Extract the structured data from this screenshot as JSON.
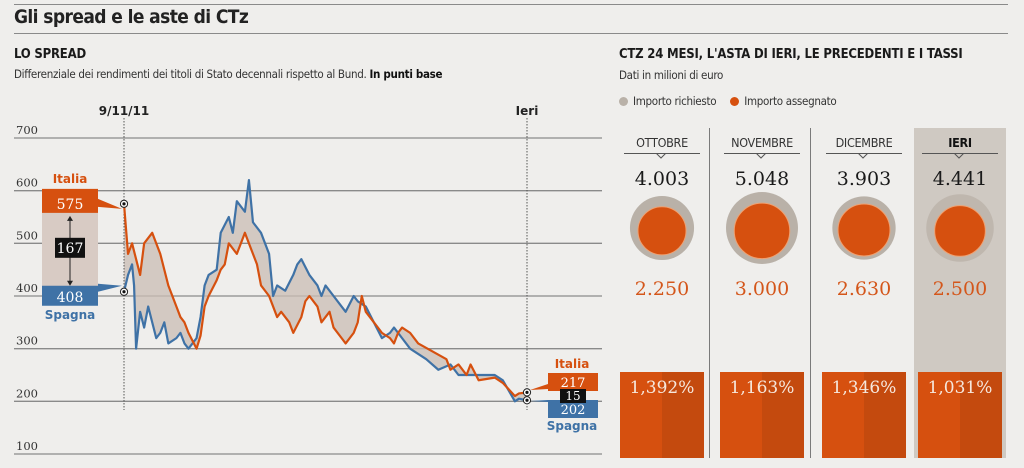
{
  "header": {
    "title": "Gli spread e le aste di CTz"
  },
  "spread": {
    "title": "LO SPREAD",
    "subtitle": "Differenziale dei rendimenti dei titoli di Stato decennali rispetto al Bund.",
    "subtitle_bold": "In punti base"
  },
  "auctions": {
    "title": "CTZ 24 MESI,  L'ASTA DI IERI, LE PRECEDENTI E I TASSI",
    "subtitle": "Dati in milioni di euro",
    "legend": [
      {
        "label": "Importo richiesto",
        "color": "#b9b1a8"
      },
      {
        "label": "Importo assegnato",
        "color": "#d6500f"
      }
    ],
    "columns": [
      {
        "month": "OTTOBRE",
        "requested": "4.003",
        "requested_value": 4003,
        "assigned": "2.250",
        "assigned_value": 2250,
        "rate": "1,392%",
        "highlight": false
      },
      {
        "month": "NOVEMBRE",
        "requested": "5.048",
        "requested_value": 5048,
        "assigned": "3.000",
        "assigned_value": 3000,
        "rate": "1,163%",
        "highlight": false
      },
      {
        "month": "DICEMBRE",
        "requested": "3.903",
        "requested_value": 3903,
        "assigned": "2.630",
        "assigned_value": 2630,
        "rate": "1,346%",
        "highlight": false
      },
      {
        "month": "IERI",
        "requested": "4.441",
        "requested_value": 4441,
        "assigned": "2.500",
        "assigned_value": 2500,
        "rate": "1,031%",
        "highlight": true
      }
    ]
  },
  "chart_data": {
    "type": "line",
    "title": "LO SPREAD",
    "ylabel": "punti base",
    "ylim": [
      100,
      700
    ],
    "yticks": [
      700,
      600,
      500,
      400,
      300,
      200,
      100
    ],
    "grid": true,
    "markers": [
      {
        "label": "9/11/11",
        "index": 0
      },
      {
        "label": "Ieri",
        "index": 100
      }
    ],
    "series": [
      {
        "name": "Italia",
        "color": "#d6500f",
        "start_value": 575,
        "end_value": 217,
        "points": [
          [
            0,
            575
          ],
          [
            1,
            480
          ],
          [
            2,
            500
          ],
          [
            3,
            470
          ],
          [
            4,
            440
          ],
          [
            5,
            500
          ],
          [
            7,
            520
          ],
          [
            8,
            500
          ],
          [
            9,
            480
          ],
          [
            11,
            420
          ],
          [
            13,
            380
          ],
          [
            14,
            360
          ],
          [
            15,
            350
          ],
          [
            16,
            330
          ],
          [
            18,
            300
          ],
          [
            19,
            325
          ],
          [
            20,
            380
          ],
          [
            21,
            400
          ],
          [
            23,
            430
          ],
          [
            24,
            450
          ],
          [
            25,
            460
          ],
          [
            26,
            500
          ],
          [
            28,
            480
          ],
          [
            29,
            500
          ],
          [
            30,
            520
          ],
          [
            31,
            500
          ],
          [
            33,
            460
          ],
          [
            34,
            420
          ],
          [
            36,
            400
          ],
          [
            38,
            360
          ],
          [
            39,
            370
          ],
          [
            41,
            350
          ],
          [
            42,
            330
          ],
          [
            44,
            360
          ],
          [
            45,
            390
          ],
          [
            46,
            400
          ],
          [
            48,
            380
          ],
          [
            49,
            350
          ],
          [
            51,
            370
          ],
          [
            52,
            340
          ],
          [
            54,
            320
          ],
          [
            55,
            310
          ],
          [
            57,
            330
          ],
          [
            58,
            350
          ],
          [
            59,
            400
          ],
          [
            60,
            370
          ],
          [
            62,
            350
          ],
          [
            64,
            330
          ],
          [
            66,
            320
          ],
          [
            67,
            310
          ],
          [
            68,
            330
          ],
          [
            69,
            340
          ],
          [
            71,
            330
          ],
          [
            73,
            310
          ],
          [
            80,
            280
          ],
          [
            81,
            260
          ],
          [
            83,
            270
          ],
          [
            85,
            250
          ],
          [
            86,
            270
          ],
          [
            88,
            240
          ],
          [
            92,
            245
          ],
          [
            94,
            235
          ],
          [
            97,
            210
          ],
          [
            98,
            215
          ],
          [
            100,
            217
          ]
        ]
      },
      {
        "name": "Spagna",
        "color": "#3f72a6",
        "start_value": 408,
        "end_value": 202,
        "points": [
          [
            0,
            408
          ],
          [
            1,
            440
          ],
          [
            2,
            460
          ],
          [
            2.5,
            420
          ],
          [
            3,
            300
          ],
          [
            4,
            370
          ],
          [
            5,
            340
          ],
          [
            6,
            380
          ],
          [
            8,
            320
          ],
          [
            9,
            330
          ],
          [
            10,
            350
          ],
          [
            11,
            310
          ],
          [
            13,
            320
          ],
          [
            14,
            330
          ],
          [
            15,
            310
          ],
          [
            16,
            300
          ],
          [
            18,
            320
          ],
          [
            19,
            360
          ],
          [
            20,
            420
          ],
          [
            21,
            440
          ],
          [
            23,
            450
          ],
          [
            24,
            520
          ],
          [
            26,
            550
          ],
          [
            27,
            520
          ],
          [
            28,
            580
          ],
          [
            30,
            560
          ],
          [
            31,
            620
          ],
          [
            32,
            540
          ],
          [
            34,
            520
          ],
          [
            36,
            480
          ],
          [
            37,
            400
          ],
          [
            38,
            420
          ],
          [
            40,
            410
          ],
          [
            42,
            440
          ],
          [
            43,
            460
          ],
          [
            44,
            470
          ],
          [
            46,
            440
          ],
          [
            48,
            420
          ],
          [
            49,
            400
          ],
          [
            50,
            420
          ],
          [
            52,
            400
          ],
          [
            54,
            380
          ],
          [
            55,
            370
          ],
          [
            57,
            400
          ],
          [
            58,
            390
          ],
          [
            60,
            380
          ],
          [
            62,
            350
          ],
          [
            64,
            320
          ],
          [
            66,
            330
          ],
          [
            67,
            340
          ],
          [
            69,
            320
          ],
          [
            71,
            300
          ],
          [
            75,
            280
          ],
          [
            78,
            260
          ],
          [
            81,
            270
          ],
          [
            83,
            250
          ],
          [
            88,
            250
          ],
          [
            92,
            250
          ],
          [
            94,
            240
          ],
          [
            97,
            200
          ],
          [
            98,
            205
          ],
          [
            100,
            202
          ]
        ]
      }
    ],
    "annotations": {
      "start_gap": "167",
      "end_gap": "15",
      "start_italia": "575",
      "start_spagna": "408",
      "end_italia": "217",
      "end_spagna": "202",
      "label_italia": "Italia",
      "label_spagna": "Spagna"
    }
  }
}
